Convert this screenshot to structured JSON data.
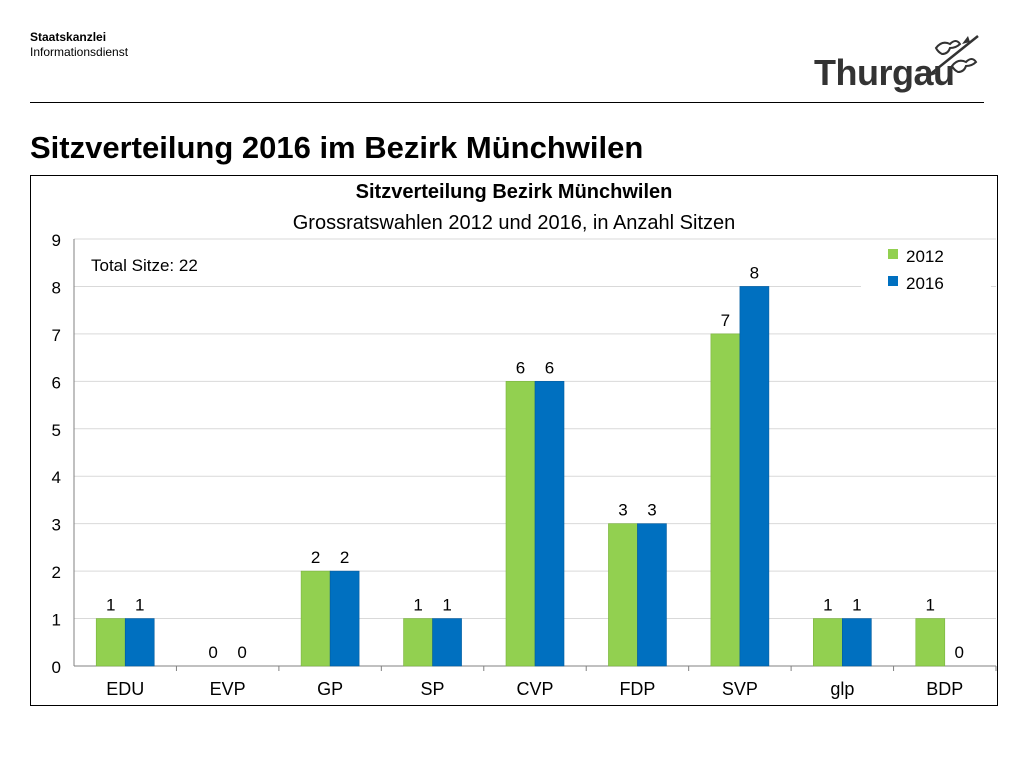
{
  "header": {
    "org_name": "Staatskanzlei",
    "org_dept": "Informationsdienst",
    "logo_text": "Thurgau"
  },
  "page_title": "Sitzverteilung 2016 im Bezirk Münchwilen",
  "colors": {
    "series_2012": "#92d050",
    "series_2016": "#0070c0"
  },
  "chart_data": {
    "type": "bar",
    "title": "Sitzverteilung Bezirk Münchwilen",
    "subtitle": "Grossratswahlen 2012 und 2016, in Anzahl Sitzen",
    "annotation": "Total Sitze: 22",
    "categories": [
      "EDU",
      "EVP",
      "GP",
      "SP",
      "CVP",
      "FDP",
      "SVP",
      "glp",
      "BDP"
    ],
    "series": [
      {
        "name": "2012",
        "values": [
          1,
          0,
          2,
          1,
          6,
          3,
          7,
          1,
          1
        ]
      },
      {
        "name": "2016",
        "values": [
          1,
          0,
          2,
          1,
          6,
          3,
          8,
          1,
          0
        ]
      }
    ],
    "ylim": [
      0,
      9
    ],
    "yticks": [
      0,
      1,
      2,
      3,
      4,
      5,
      6,
      7,
      8,
      9
    ],
    "grid": true,
    "legend": "top-right"
  }
}
